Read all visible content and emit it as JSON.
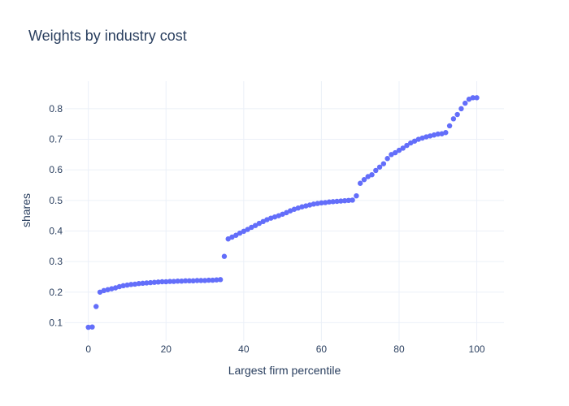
{
  "chart_data": {
    "type": "scatter",
    "title": "Weights by industry cost",
    "xlabel": "Largest firm percentile",
    "ylabel": "shares",
    "xlim": [
      -6,
      107
    ],
    "ylim": [
      0.04,
      0.89
    ],
    "xticks": [
      0,
      20,
      40,
      60,
      80,
      100
    ],
    "yticks": [
      0.1,
      0.2,
      0.3,
      0.4,
      0.5,
      0.6,
      0.7,
      0.8
    ],
    "xtick_labels": [
      "0",
      "20",
      "40",
      "60",
      "80",
      "100"
    ],
    "ytick_labels": [
      "0.1",
      "0.2",
      "0.3",
      "0.4",
      "0.5",
      "0.6",
      "0.7",
      "0.8"
    ],
    "grid": true,
    "marker_color": "#636efa",
    "series": [
      {
        "name": "shares",
        "x": [
          0,
          1,
          2,
          3,
          4,
          5,
          6,
          7,
          8,
          9,
          10,
          11,
          12,
          13,
          14,
          15,
          16,
          17,
          18,
          19,
          20,
          21,
          22,
          23,
          24,
          25,
          26,
          27,
          28,
          29,
          30,
          31,
          32,
          33,
          34,
          35,
          36,
          37,
          38,
          39,
          40,
          41,
          42,
          43,
          44,
          45,
          46,
          47,
          48,
          49,
          50,
          51,
          52,
          53,
          54,
          55,
          56,
          57,
          58,
          59,
          60,
          61,
          62,
          63,
          64,
          65,
          66,
          67,
          68,
          69,
          70,
          71,
          72,
          73,
          74,
          75,
          76,
          77,
          78,
          79,
          80,
          81,
          82,
          83,
          84,
          85,
          86,
          87,
          88,
          89,
          90,
          91,
          92,
          93,
          94,
          95,
          96,
          97,
          98,
          99,
          100
        ],
        "y": [
          0.085,
          0.086,
          0.153,
          0.2,
          0.205,
          0.208,
          0.211,
          0.214,
          0.218,
          0.221,
          0.223,
          0.225,
          0.226,
          0.228,
          0.229,
          0.23,
          0.231,
          0.232,
          0.233,
          0.234,
          0.234,
          0.235,
          0.235,
          0.236,
          0.236,
          0.237,
          0.237,
          0.237,
          0.238,
          0.238,
          0.238,
          0.239,
          0.239,
          0.24,
          0.241,
          0.317,
          0.374,
          0.38,
          0.386,
          0.393,
          0.399,
          0.405,
          0.412,
          0.418,
          0.425,
          0.431,
          0.437,
          0.442,
          0.446,
          0.45,
          0.455,
          0.46,
          0.466,
          0.471,
          0.475,
          0.479,
          0.482,
          0.485,
          0.488,
          0.49,
          0.492,
          0.493,
          0.495,
          0.496,
          0.497,
          0.498,
          0.499,
          0.5,
          0.501,
          0.515,
          0.556,
          0.568,
          0.578,
          0.584,
          0.598,
          0.609,
          0.62,
          0.637,
          0.65,
          0.656,
          0.664,
          0.671,
          0.68,
          0.688,
          0.694,
          0.7,
          0.704,
          0.708,
          0.711,
          0.714,
          0.717,
          0.718,
          0.722,
          0.744,
          0.767,
          0.781,
          0.8,
          0.818,
          0.831,
          0.836,
          0.836
        ]
      }
    ]
  }
}
